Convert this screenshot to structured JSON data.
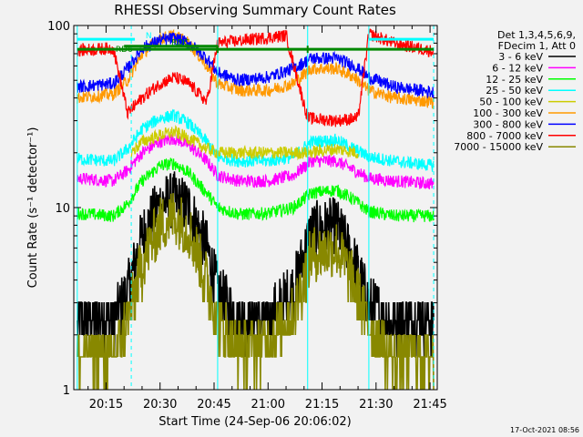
{
  "chart_data": {
    "type": "line",
    "title": "RHESSI Observing Summary Count Rates",
    "xlabel": "Start Time (24-Sep-06 20:06:02)",
    "ylabel": "Count Rate (s⁻¹ detector⁻¹)",
    "y_scale": "log",
    "ylim": [
      1,
      100
    ],
    "y_ticks": [
      {
        "v": 1,
        "label": "1"
      },
      {
        "v": 10,
        "label": "10"
      },
      {
        "v": 100,
        "label": "100"
      }
    ],
    "xlim": [
      "20:06:02",
      "21:47:00"
    ],
    "x_ticks": [
      {
        "t": "20:15",
        "label": "20:15"
      },
      {
        "t": "20:30",
        "label": "20:30"
      },
      {
        "t": "20:45",
        "label": "20:45"
      },
      {
        "t": "21:00",
        "label": "21:00"
      },
      {
        "t": "21:15",
        "label": "21:15"
      },
      {
        "t": "21:30",
        "label": "21:30"
      },
      {
        "t": "21:45",
        "label": "21:45"
      }
    ],
    "legend_header": [
      "Det 1,3,4,5,6,9,",
      "FDecim 1, Att 0"
    ],
    "legend_placement": "right",
    "timestamp": "17-Oct-2021 08:56",
    "series": [
      {
        "name": "3 - 6 keV",
        "color": "#000000",
        "points": [
          [
            "20:07",
            "2.4"
          ],
          [
            "20:17",
            "2.4"
          ],
          [
            "20:21",
            "3.5"
          ],
          [
            "20:25",
            "7"
          ],
          [
            "20:30",
            "10.5"
          ],
          [
            "20:34",
            "11"
          ],
          [
            "20:38",
            "10"
          ],
          [
            "20:43",
            "6"
          ],
          [
            "20:46",
            "3.5"
          ],
          [
            "20:52",
            "2.4"
          ],
          [
            "21:00",
            "2.5"
          ],
          [
            "21:07",
            "3.6"
          ],
          [
            "21:12",
            "7.5"
          ],
          [
            "21:19",
            "8"
          ],
          [
            "21:24",
            "5"
          ],
          [
            "21:28",
            "3"
          ],
          [
            "21:35",
            "2.4"
          ],
          [
            "21:46",
            "2.4"
          ]
        ]
      },
      {
        "name": "6 - 12 keV",
        "color": "#ff00ff",
        "points": [
          [
            "20:07",
            "14.5"
          ],
          [
            "20:17",
            "14"
          ],
          [
            "20:21",
            "16"
          ],
          [
            "20:25",
            "20"
          ],
          [
            "20:30",
            "23"
          ],
          [
            "20:34",
            "24"
          ],
          [
            "20:38",
            "22"
          ],
          [
            "20:43",
            "18"
          ],
          [
            "20:46",
            "15"
          ],
          [
            "20:52",
            "14"
          ],
          [
            "21:00",
            "14"
          ],
          [
            "21:07",
            "15"
          ],
          [
            "21:12",
            "18"
          ],
          [
            "21:19",
            "18"
          ],
          [
            "21:24",
            "16"
          ],
          [
            "21:28",
            "14.5"
          ],
          [
            "21:35",
            "14"
          ],
          [
            "21:46",
            "13.5"
          ]
        ]
      },
      {
        "name": "12 - 25 keV",
        "color": "#00ff00",
        "points": [
          [
            "20:07",
            "9.3"
          ],
          [
            "20:17",
            "9"
          ],
          [
            "20:21",
            "10.5"
          ],
          [
            "20:25",
            "14"
          ],
          [
            "20:30",
            "17"
          ],
          [
            "20:34",
            "17.5"
          ],
          [
            "20:38",
            "15.5"
          ],
          [
            "20:43",
            "12"
          ],
          [
            "20:46",
            "10"
          ],
          [
            "20:52",
            "9.2"
          ],
          [
            "21:00",
            "9.3"
          ],
          [
            "21:07",
            "10"
          ],
          [
            "21:12",
            "12"
          ],
          [
            "21:19",
            "12.5"
          ],
          [
            "21:24",
            "11"
          ],
          [
            "21:28",
            "9.5"
          ],
          [
            "21:35",
            "9"
          ],
          [
            "21:46",
            "9"
          ]
        ]
      },
      {
        "name": "25 - 50 keV",
        "color": "#00ffff",
        "points": [
          [
            "20:07",
            "18.5"
          ],
          [
            "20:17",
            "18"
          ],
          [
            "20:21",
            "21"
          ],
          [
            "20:25",
            "27"
          ],
          [
            "20:30",
            "31"
          ],
          [
            "20:34",
            "32"
          ],
          [
            "20:38",
            "29"
          ],
          [
            "20:43",
            "23"
          ],
          [
            "20:46",
            "19"
          ],
          [
            "20:52",
            "18"
          ],
          [
            "21:00",
            "18"
          ],
          [
            "21:07",
            "19"
          ],
          [
            "21:12",
            "23"
          ],
          [
            "21:19",
            "23.5"
          ],
          [
            "21:24",
            "21"
          ],
          [
            "21:28",
            "19"
          ],
          [
            "21:35",
            "18"
          ],
          [
            "21:46",
            "17"
          ]
        ]
      },
      {
        "name": "50 - 100 keV",
        "color": "#cccc00",
        "points": [
          [
            "20:22",
            "20"
          ],
          [
            "20:25",
            "23"
          ],
          [
            "20:30",
            "25"
          ],
          [
            "20:34",
            "26"
          ],
          [
            "20:38",
            "24"
          ],
          [
            "20:43",
            "21"
          ],
          [
            "20:46",
            "20"
          ],
          [
            "21:11",
            "20"
          ],
          [
            "21:19",
            "21"
          ],
          [
            "21:25",
            "20"
          ]
        ]
      },
      {
        "name": "100 - 300 keV",
        "color": "#ff9900",
        "points": [
          [
            "20:07",
            "40"
          ],
          [
            "20:17",
            "42"
          ],
          [
            "20:21",
            "50"
          ],
          [
            "20:25",
            "70"
          ],
          [
            "20:30",
            "85"
          ],
          [
            "20:34",
            "88"
          ],
          [
            "20:38",
            "80"
          ],
          [
            "20:43",
            "60"
          ],
          [
            "20:46",
            "48"
          ],
          [
            "20:52",
            "44"
          ],
          [
            "21:00",
            "44"
          ],
          [
            "21:07",
            "48"
          ],
          [
            "21:12",
            "58"
          ],
          [
            "21:19",
            "58"
          ],
          [
            "21:24",
            "52"
          ],
          [
            "21:28",
            "44"
          ],
          [
            "21:35",
            "40"
          ],
          [
            "21:46",
            "38"
          ]
        ]
      },
      {
        "name": "300 - 800 keV",
        "color": "#0000ff",
        "points": [
          [
            "20:07",
            "46"
          ],
          [
            "20:17",
            "48"
          ],
          [
            "20:21",
            "58"
          ],
          [
            "20:25",
            "75"
          ],
          [
            "20:30",
            "83"
          ],
          [
            "20:34",
            "85"
          ],
          [
            "20:38",
            "80"
          ],
          [
            "20:43",
            "66"
          ],
          [
            "20:46",
            "55"
          ],
          [
            "20:52",
            "50"
          ],
          [
            "21:00",
            "52"
          ],
          [
            "21:07",
            "58"
          ],
          [
            "21:12",
            "66"
          ],
          [
            "21:19",
            "66"
          ],
          [
            "21:24",
            "60"
          ],
          [
            "21:28",
            "52"
          ],
          [
            "21:35",
            "46"
          ],
          [
            "21:46",
            "43"
          ]
        ]
      },
      {
        "name": "800 - 7000 keV",
        "color": "#ff0000",
        "points": [
          [
            "20:07",
            "73"
          ],
          [
            "20:17",
            "75"
          ],
          [
            "20:21",
            "33"
          ],
          [
            "20:25",
            "40"
          ],
          [
            "20:30",
            "48"
          ],
          [
            "20:34",
            "52"
          ],
          [
            "20:38",
            "48"
          ],
          [
            "20:43",
            "38"
          ],
          [
            "20:46",
            "80"
          ],
          [
            "21:05",
            "88"
          ],
          [
            "21:11",
            "31"
          ],
          [
            "21:19",
            "30"
          ],
          [
            "21:25",
            "31"
          ],
          [
            "21:28",
            "90"
          ],
          [
            "21:35",
            "80"
          ],
          [
            "21:46",
            "72"
          ]
        ]
      },
      {
        "name": "7000 - 15000 keV",
        "color": "#888800",
        "points": [
          [
            "20:07",
            "1.5"
          ],
          [
            "20:17",
            "1.5"
          ],
          [
            "20:21",
            "2.4"
          ],
          [
            "20:25",
            "5"
          ],
          [
            "20:30",
            "8"
          ],
          [
            "20:34",
            "9"
          ],
          [
            "20:38",
            "7.5"
          ],
          [
            "20:43",
            "4"
          ],
          [
            "20:46",
            "2.4"
          ],
          [
            "20:52",
            "1.6"
          ],
          [
            "21:00",
            "1.8"
          ],
          [
            "21:07",
            "2.6"
          ],
          [
            "21:12",
            "5.5"
          ],
          [
            "21:19",
            "6"
          ],
          [
            "21:24",
            "3.8"
          ],
          [
            "21:28",
            "2.2"
          ],
          [
            "21:35",
            "1.5"
          ],
          [
            "21:46",
            "1.5"
          ]
        ]
      }
    ],
    "flag_bars": [
      {
        "label": "N",
        "color": "#00ffff",
        "y": "84",
        "segments": [
          [
            "20:07",
            "20:23"
          ],
          [
            "21:28",
            "21:46"
          ]
        ]
      },
      {
        "label": "RDC",
        "color": "#008800",
        "y": "77",
        "segments": [
          [
            "20:20",
            "20:46"
          ]
        ]
      },
      {
        "label": "RD6",
        "color": "#008800",
        "y": "74",
        "segments": [
          [
            "20:07",
            "21:46"
          ]
        ]
      }
    ],
    "attenuator_lines": {
      "color": "#00ffff",
      "solid": [
        "20:07",
        "20:46",
        "21:11",
        "21:28"
      ],
      "dashed": [
        "20:22",
        "21:46"
      ]
    },
    "gap_markers": [
      {
        "color": "#008800",
        "t": "20:46"
      },
      {
        "color": "#008800",
        "t": "21:11"
      }
    ]
  }
}
